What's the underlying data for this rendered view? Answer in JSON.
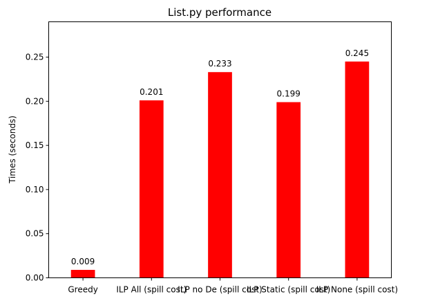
{
  "chart_data": {
    "type": "bar",
    "title": "List.py performance",
    "xlabel": "",
    "ylabel": "Times (seconds)",
    "categories": [
      "Greedy",
      "ILP All (spill cost)",
      "ILP no De (spill cost)",
      "ILP Static (spill cost)",
      "ILP None (spill cost)"
    ],
    "values": [
      0.009,
      0.201,
      0.233,
      0.199,
      0.245
    ],
    "data_labels": [
      "0.009",
      "0.201",
      "0.233",
      "0.199",
      "0.245"
    ],
    "ylim": [
      0,
      0.29
    ],
    "yticks": [
      0.0,
      0.05,
      0.1,
      0.15,
      0.2,
      0.25
    ],
    "ytick_labels": [
      "0.00",
      "0.05",
      "0.10",
      "0.15",
      "0.20",
      "0.25"
    ],
    "bar_color": "#ff0000",
    "grid": false,
    "legend": "none"
  }
}
